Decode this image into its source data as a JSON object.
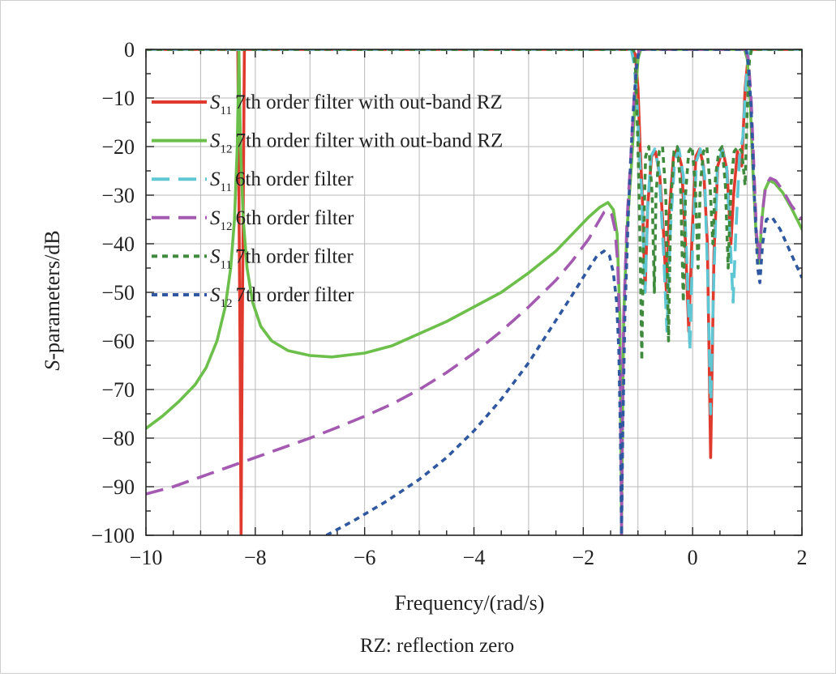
{
  "chart_data": {
    "type": "line",
    "xlabel": "Frequency/(rad/s)",
    "ylabel_italic": "S",
    "ylabel_rest": "-parameters/dB",
    "xlim": [
      -10,
      2
    ],
    "ylim": [
      -100,
      0
    ],
    "x_ticks": [
      -10,
      -8,
      -6,
      -4,
      -2,
      0,
      2
    ],
    "x_tick_labels": [
      "−10",
      "−8",
      "−6",
      "−4",
      "−2",
      "0",
      "2"
    ],
    "y_ticks": [
      0,
      -10,
      -20,
      -30,
      -40,
      -50,
      -60,
      -70,
      -80,
      -90,
      -100
    ],
    "y_tick_labels": [
      "0",
      "−10",
      "−20",
      "−30",
      "−40",
      "−50",
      "−60",
      "−70",
      "−80",
      "−90",
      "−100"
    ],
    "grid": true,
    "legend_position": "top-left",
    "note": "RZ: reflection zero",
    "series": [
      {
        "sym": "S",
        "sub": "11",
        "label": "7th order filter with out-band RZ",
        "color": "#e03a2f",
        "dash": "solid",
        "points": [
          [
            -10,
            0
          ],
          [
            -8.32,
            0
          ],
          [
            -8.28,
            -60
          ],
          [
            -8.26,
            -100
          ],
          [
            -8.24,
            -60
          ],
          [
            -8.2,
            0
          ],
          [
            -1.1,
            0
          ],
          [
            -1.05,
            -1
          ],
          [
            -1.0,
            -8
          ],
          [
            -0.96,
            -20
          ],
          [
            -0.92,
            -30
          ],
          [
            -0.87,
            -50
          ],
          [
            -0.82,
            -32
          ],
          [
            -0.75,
            -22
          ],
          [
            -0.68,
            -21
          ],
          [
            -0.6,
            -26
          ],
          [
            -0.53,
            -38
          ],
          [
            -0.48,
            -50
          ],
          [
            -0.43,
            -34
          ],
          [
            -0.35,
            -22
          ],
          [
            -0.28,
            -20.5
          ],
          [
            -0.2,
            -24
          ],
          [
            -0.13,
            -40
          ],
          [
            -0.07,
            -58
          ],
          [
            -0.01,
            -38
          ],
          [
            0.06,
            -22
          ],
          [
            0.13,
            -20.5
          ],
          [
            0.2,
            -24
          ],
          [
            0.27,
            -40
          ],
          [
            0.33,
            -84
          ],
          [
            0.39,
            -42
          ],
          [
            0.46,
            -24
          ],
          [
            0.55,
            -20.5
          ],
          [
            0.63,
            -25
          ],
          [
            0.7,
            -40
          ],
          [
            0.75,
            -30
          ],
          [
            0.82,
            -21
          ],
          [
            0.9,
            -24
          ],
          [
            0.96,
            -8
          ],
          [
            1.02,
            -1
          ],
          [
            1.08,
            0
          ],
          [
            2,
            0
          ]
        ]
      },
      {
        "sym": "S",
        "sub": "12",
        "label": "7th order filter with out-band RZ",
        "color": "#6cbf4a",
        "dash": "solid",
        "points": [
          [
            -10,
            -78
          ],
          [
            -9.7,
            -75.5
          ],
          [
            -9.4,
            -72.5
          ],
          [
            -9.1,
            -69
          ],
          [
            -8.9,
            -65.5
          ],
          [
            -8.7,
            -60
          ],
          [
            -8.55,
            -53
          ],
          [
            -8.45,
            -45
          ],
          [
            -8.38,
            -35
          ],
          [
            -8.33,
            -20
          ],
          [
            -8.31,
            -8
          ],
          [
            -8.3,
            0
          ],
          [
            -8.29,
            -8
          ],
          [
            -8.27,
            -20
          ],
          [
            -8.22,
            -35
          ],
          [
            -8.15,
            -45
          ],
          [
            -8.05,
            -52
          ],
          [
            -7.9,
            -57
          ],
          [
            -7.7,
            -60
          ],
          [
            -7.4,
            -62
          ],
          [
            -7.0,
            -63
          ],
          [
            -6.6,
            -63.3
          ],
          [
            -6.0,
            -62.5
          ],
          [
            -5.5,
            -61
          ],
          [
            -5.0,
            -58.5
          ],
          [
            -4.5,
            -56
          ],
          [
            -4.0,
            -53
          ],
          [
            -3.5,
            -50
          ],
          [
            -3.0,
            -46
          ],
          [
            -2.5,
            -41.5
          ],
          [
            -2.2,
            -38
          ],
          [
            -1.9,
            -34.5
          ],
          [
            -1.7,
            -32.5
          ],
          [
            -1.55,
            -31.5
          ],
          [
            -1.45,
            -33
          ],
          [
            -1.38,
            -38
          ],
          [
            -1.33,
            -55
          ],
          [
            -1.31,
            -85
          ],
          [
            -1.3,
            -100
          ],
          [
            -1.29,
            -85
          ],
          [
            -1.26,
            -55
          ],
          [
            -1.2,
            -37
          ],
          [
            -1.12,
            -24
          ],
          [
            -1.05,
            -10
          ],
          [
            -1.0,
            -2
          ],
          [
            -0.95,
            0
          ],
          [
            0.95,
            0
          ],
          [
            1.0,
            -2
          ],
          [
            1.05,
            -10
          ],
          [
            1.1,
            -24
          ],
          [
            1.16,
            -38
          ],
          [
            1.22,
            -44
          ],
          [
            1.26,
            -36
          ],
          [
            1.32,
            -29
          ],
          [
            1.4,
            -27
          ],
          [
            1.5,
            -27.5
          ],
          [
            1.65,
            -29.5
          ],
          [
            1.8,
            -32.5
          ],
          [
            2.0,
            -37
          ]
        ]
      },
      {
        "sym": "S",
        "sub": "11",
        "label": "6th order filter",
        "color": "#5fc6d4",
        "dash": "dash",
        "points": [
          [
            -10,
            0
          ],
          [
            -1.12,
            0
          ],
          [
            -1.07,
            -3
          ],
          [
            -1.02,
            -10
          ],
          [
            -0.98,
            -20
          ],
          [
            -0.93,
            -30
          ],
          [
            -0.87,
            -50
          ],
          [
            -0.82,
            -32
          ],
          [
            -0.76,
            -22
          ],
          [
            -0.69,
            -20.5
          ],
          [
            -0.61,
            -25
          ],
          [
            -0.53,
            -42
          ],
          [
            -0.47,
            -58
          ],
          [
            -0.41,
            -38
          ],
          [
            -0.33,
            -23
          ],
          [
            -0.25,
            -20.5
          ],
          [
            -0.17,
            -26
          ],
          [
            -0.1,
            -45
          ],
          [
            -0.05,
            -62
          ],
          [
            0.0,
            -40
          ],
          [
            0.07,
            -23
          ],
          [
            0.14,
            -20.5
          ],
          [
            0.22,
            -26
          ],
          [
            0.28,
            -48
          ],
          [
            0.33,
            -75
          ],
          [
            0.38,
            -50
          ],
          [
            0.45,
            -25
          ],
          [
            0.54,
            -20.5
          ],
          [
            0.62,
            -24
          ],
          [
            0.69,
            -40
          ],
          [
            0.74,
            -52
          ],
          [
            0.79,
            -38
          ],
          [
            0.86,
            -22
          ],
          [
            0.92,
            -18
          ],
          [
            0.97,
            -8
          ],
          [
            1.02,
            -1
          ],
          [
            1.07,
            0
          ],
          [
            2,
            0
          ]
        ]
      },
      {
        "sym": "S",
        "sub": "12",
        "label": "6th order filter",
        "color": "#a35ab0",
        "dash": "dash",
        "points": [
          [
            -10,
            -91.5
          ],
          [
            -9.5,
            -90
          ],
          [
            -9.0,
            -88
          ],
          [
            -8.5,
            -86
          ],
          [
            -8.0,
            -84
          ],
          [
            -7.5,
            -82
          ],
          [
            -7.0,
            -80
          ],
          [
            -6.5,
            -77.8
          ],
          [
            -6.0,
            -75.5
          ],
          [
            -5.5,
            -73
          ],
          [
            -5.0,
            -70
          ],
          [
            -4.5,
            -66.5
          ],
          [
            -4.0,
            -62.5
          ],
          [
            -3.5,
            -58
          ],
          [
            -3.0,
            -53
          ],
          [
            -2.5,
            -47.5
          ],
          [
            -2.2,
            -43.5
          ],
          [
            -1.9,
            -39
          ],
          [
            -1.75,
            -36
          ],
          [
            -1.62,
            -33.5
          ],
          [
            -1.55,
            -33
          ],
          [
            -1.48,
            -34
          ],
          [
            -1.42,
            -37
          ],
          [
            -1.37,
            -44
          ],
          [
            -1.33,
            -60
          ],
          [
            -1.31,
            -85
          ],
          [
            -1.3,
            -100
          ],
          [
            -1.29,
            -85
          ],
          [
            -1.26,
            -55
          ],
          [
            -1.2,
            -35
          ],
          [
            -1.13,
            -22
          ],
          [
            -1.07,
            -10
          ],
          [
            -1.02,
            -2
          ],
          [
            -0.97,
            0
          ],
          [
            0.97,
            0
          ],
          [
            1.02,
            -2
          ],
          [
            1.07,
            -10
          ],
          [
            1.12,
            -24
          ],
          [
            1.17,
            -38
          ],
          [
            1.22,
            -43
          ],
          [
            1.27,
            -34
          ],
          [
            1.34,
            -28
          ],
          [
            1.42,
            -26.5
          ],
          [
            1.52,
            -27
          ],
          [
            1.65,
            -29
          ],
          [
            1.8,
            -32
          ],
          [
            2.0,
            -35
          ]
        ]
      },
      {
        "sym": "S",
        "sub": "11",
        "label": "7th order filter",
        "color": "#3f8a3c",
        "dash": "dot",
        "points": [
          [
            -10,
            0
          ],
          [
            -1.08,
            0
          ],
          [
            -1.04,
            -5
          ],
          [
            -1.0,
            -20
          ],
          [
            -0.96,
            -40
          ],
          [
            -0.93,
            -64
          ],
          [
            -0.9,
            -40
          ],
          [
            -0.86,
            -22
          ],
          [
            -0.8,
            -20
          ],
          [
            -0.74,
            -30
          ],
          [
            -0.7,
            -50
          ],
          [
            -0.67,
            -30
          ],
          [
            -0.61,
            -21
          ],
          [
            -0.55,
            -20
          ],
          [
            -0.49,
            -30
          ],
          [
            -0.44,
            -60
          ],
          [
            -0.4,
            -32
          ],
          [
            -0.34,
            -21
          ],
          [
            -0.28,
            -20
          ],
          [
            -0.22,
            -28
          ],
          [
            -0.17,
            -52
          ],
          [
            -0.13,
            -30
          ],
          [
            -0.07,
            -21
          ],
          [
            -0.01,
            -20
          ],
          [
            0.05,
            -28
          ],
          [
            0.1,
            -45
          ],
          [
            0.14,
            -28
          ],
          [
            0.2,
            -21
          ],
          [
            0.26,
            -20
          ],
          [
            0.32,
            -28
          ],
          [
            0.37,
            -40
          ],
          [
            0.42,
            -26
          ],
          [
            0.48,
            -21
          ],
          [
            0.54,
            -20
          ],
          [
            0.6,
            -28
          ],
          [
            0.65,
            -45
          ],
          [
            0.7,
            -28
          ],
          [
            0.76,
            -21
          ],
          [
            0.83,
            -20
          ],
          [
            0.9,
            -21
          ],
          [
            0.96,
            -28
          ],
          [
            1.0,
            -12
          ],
          [
            1.04,
            -2
          ],
          [
            1.08,
            0
          ],
          [
            2,
            0
          ]
        ]
      },
      {
        "sym": "S",
        "sub": "12",
        "label": "7th order filter",
        "color": "#2f58a0",
        "dash": "dot",
        "points": [
          [
            -6.7,
            -100
          ],
          [
            -6.2,
            -97
          ],
          [
            -5.6,
            -93
          ],
          [
            -5.0,
            -88.5
          ],
          [
            -4.5,
            -84
          ],
          [
            -4.0,
            -78.5
          ],
          [
            -3.5,
            -72
          ],
          [
            -3.0,
            -64.5
          ],
          [
            -2.6,
            -57.5
          ],
          [
            -2.2,
            -50.5
          ],
          [
            -1.95,
            -46
          ],
          [
            -1.75,
            -42.5
          ],
          [
            -1.62,
            -41.5
          ],
          [
            -1.52,
            -42.5
          ],
          [
            -1.45,
            -46
          ],
          [
            -1.39,
            -52
          ],
          [
            -1.35,
            -62
          ],
          [
            -1.32,
            -80
          ],
          [
            -1.3,
            -100
          ],
          [
            -1.28,
            -80
          ],
          [
            -1.24,
            -55
          ],
          [
            -1.17,
            -32
          ],
          [
            -1.1,
            -15
          ],
          [
            -1.03,
            -4
          ],
          [
            -0.98,
            0
          ],
          [
            0.98,
            0
          ],
          [
            1.02,
            -3
          ],
          [
            1.07,
            -12
          ],
          [
            1.13,
            -30
          ],
          [
            1.19,
            -45
          ],
          [
            1.23,
            -48
          ],
          [
            1.28,
            -40
          ],
          [
            1.35,
            -35
          ],
          [
            1.45,
            -34.5
          ],
          [
            1.6,
            -37
          ],
          [
            1.8,
            -42
          ],
          [
            2.0,
            -47
          ]
        ]
      }
    ]
  }
}
